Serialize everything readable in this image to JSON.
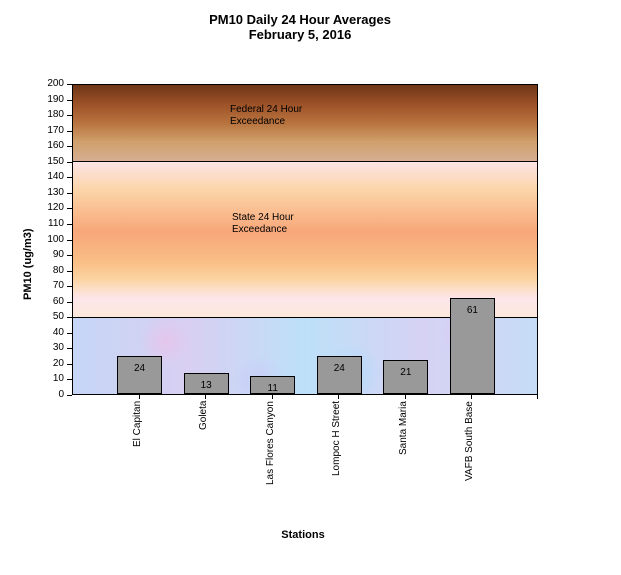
{
  "chart_data": {
    "type": "bar",
    "title": "PM10 Daily 24 Hour Averages",
    "subtitle": "February 5, 2016",
    "xlabel": "Stations",
    "ylabel": "PM10 (ug/m3)",
    "ylim": [
      0,
      200
    ],
    "yticks": [
      0,
      10,
      20,
      30,
      40,
      50,
      60,
      70,
      80,
      90,
      100,
      110,
      120,
      130,
      140,
      150,
      160,
      170,
      180,
      190,
      200
    ],
    "categories": [
      "El Capitan",
      "Goleta",
      "Las Flores Canyon",
      "Lompoc H Street",
      "Santa Maria",
      "VAFB South Base"
    ],
    "values": [
      24,
      13,
      11,
      24,
      21,
      61
    ],
    "bar_color": "#999999",
    "grid": false,
    "legend": "none",
    "annotations": [
      {
        "text_line1": "Federal 24 Hour",
        "text_line2": "Exceedance",
        "band": [
          150,
          200
        ],
        "color_top": "#6e3517",
        "color_bottom": "#d4ae93"
      },
      {
        "text_line1": "State 24 Hour",
        "text_line2": "Exceedance",
        "band": [
          50,
          150
        ],
        "color_mid": "#f8a77a"
      },
      {
        "band": [
          0,
          50
        ],
        "color": "#c6d6f6",
        "text_line1": "",
        "text_line2": ""
      }
    ]
  }
}
